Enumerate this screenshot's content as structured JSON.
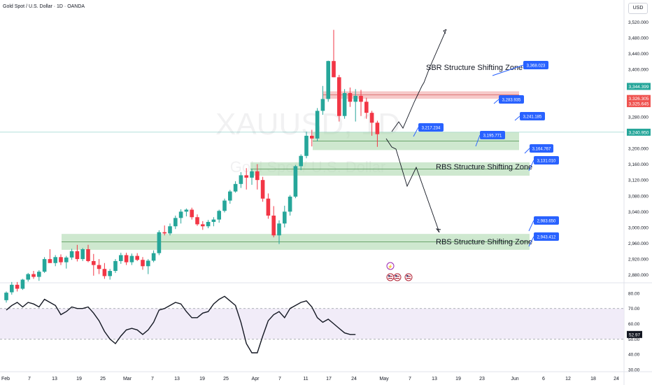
{
  "header": {
    "symbol_title": "Gold Spot / U.S. Dollar · 1D · OANDA",
    "currency": "USD",
    "watermark_symbol": "XAUUSD, 1D",
    "watermark_name": "Gold Spot / U.S. Dollar"
  },
  "chart_data": {
    "type": "candlestick",
    "price_axis": {
      "ylim": [
        2860,
        3540
      ],
      "ticks": [
        "3,520.000",
        "3,480.000",
        "3,440.000",
        "3,400.000",
        "3,360.000",
        "3,320.000",
        "3,280.000",
        "3,240.000",
        "3,200.000",
        "3,160.000",
        "3,120.000",
        "3,080.000",
        "3,040.000",
        "3,000.000",
        "2,960.000",
        "2,920.000",
        "2,880.000"
      ],
      "price_labels": [
        {
          "text": "3,344.399",
          "value": 3344.4,
          "color": "#26a69a"
        },
        {
          "text": "3,326.305",
          "value": 3326.3,
          "color": "#ef5350"
        },
        {
          "text": "3,325.645",
          "value": 3325.6,
          "color": "#ef5350"
        },
        {
          "text": "3,240.950",
          "value": 3240.95,
          "color": "#26a69a"
        }
      ]
    },
    "time_axis": {
      "labels": [
        "Feb",
        "7",
        "13",
        "19",
        "25",
        "Mar",
        "7",
        "13",
        "19",
        "25",
        "Apr",
        "7",
        "11",
        "17",
        "24",
        "May",
        "7",
        "13",
        "19",
        "23",
        "Jun",
        "6",
        "12",
        "18",
        "24"
      ]
    },
    "candles": [
      [
        2816,
        2838,
        2810,
        2835
      ],
      [
        2836,
        2862,
        2830,
        2855
      ],
      [
        2855,
        2862,
        2838,
        2845
      ],
      [
        2845,
        2870,
        2842,
        2868
      ],
      [
        2868,
        2885,
        2863,
        2882
      ],
      [
        2882,
        2890,
        2870,
        2875
      ],
      [
        2875,
        2892,
        2865,
        2888
      ],
      [
        2888,
        2925,
        2885,
        2920
      ],
      [
        2920,
        2945,
        2912,
        2910
      ],
      [
        2910,
        2930,
        2902,
        2925
      ],
      [
        2925,
        2932,
        2905,
        2912
      ],
      [
        2912,
        2928,
        2896,
        2924
      ],
      [
        2924,
        2946,
        2918,
        2940
      ],
      [
        2940,
        2956,
        2914,
        2920
      ],
      [
        2920,
        2948,
        2915,
        2945
      ],
      [
        2945,
        2956,
        2912,
        2915
      ],
      [
        2915,
        2933,
        2878,
        2905
      ],
      [
        2905,
        2920,
        2882,
        2895
      ],
      [
        2895,
        2910,
        2870,
        2877
      ],
      [
        2877,
        2895,
        2868,
        2890
      ],
      [
        2890,
        2920,
        2885,
        2915
      ],
      [
        2915,
        2936,
        2908,
        2930
      ],
      [
        2930,
        2936,
        2905,
        2912
      ],
      [
        2912,
        2934,
        2905,
        2928
      ],
      [
        2928,
        2935,
        2915,
        2918
      ],
      [
        2918,
        2925,
        2893,
        2902
      ],
      [
        2902,
        2920,
        2882,
        2916
      ],
      [
        2916,
        2942,
        2912,
        2935
      ],
      [
        2935,
        2993,
        2930,
        2988
      ],
      [
        2988,
        3005,
        2980,
        2985
      ],
      [
        2985,
        3010,
        2980,
        3003
      ],
      [
        3003,
        3030,
        2996,
        3024
      ],
      [
        3024,
        3046,
        3010,
        3040
      ],
      [
        3040,
        3048,
        3028,
        3045
      ],
      [
        3045,
        3050,
        3020,
        3026
      ],
      [
        3026,
        3033,
        3004,
        3008
      ],
      [
        3008,
        3016,
        2994,
        3003
      ],
      [
        3003,
        3019,
        2998,
        3014
      ],
      [
        3014,
        3026,
        3003,
        3020
      ],
      [
        3020,
        3045,
        3012,
        3042
      ],
      [
        3042,
        3073,
        3038,
        3068
      ],
      [
        3068,
        3095,
        3060,
        3091
      ],
      [
        3091,
        3117,
        3088,
        3110
      ],
      [
        3110,
        3140,
        3100,
        3132
      ],
      [
        3132,
        3150,
        3096,
        3126
      ],
      [
        3126,
        3148,
        3108,
        3142
      ],
      [
        3142,
        3160,
        3096,
        3120
      ],
      [
        3120,
        3128,
        3065,
        3073
      ],
      [
        3073,
        3086,
        3022,
        3030
      ],
      [
        3030,
        3054,
        2975,
        2980
      ],
      [
        2980,
        3018,
        2958,
        3010
      ],
      [
        3010,
        3055,
        3000,
        3040
      ],
      [
        3040,
        3082,
        3030,
        3078
      ],
      [
        3078,
        3158,
        3074,
        3155
      ],
      [
        3155,
        3185,
        3145,
        3181
      ],
      [
        3181,
        3242,
        3175,
        3232
      ],
      [
        3232,
        3247,
        3205,
        3225
      ],
      [
        3225,
        3302,
        3218,
        3295
      ],
      [
        3295,
        3358,
        3285,
        3325
      ],
      [
        3325,
        3422,
        3318,
        3421
      ],
      [
        3421,
        3500,
        3380,
        3380
      ],
      [
        3380,
        3386,
        3268,
        3282
      ],
      [
        3282,
        3350,
        3275,
        3340
      ],
      [
        3340,
        3354,
        3305,
        3318
      ],
      [
        3318,
        3350,
        3268,
        3333
      ],
      [
        3333,
        3348,
        3282,
        3318
      ],
      [
        3318,
        3328,
        3275,
        3290
      ],
      [
        3290,
        3295,
        3232,
        3265
      ],
      [
        3265,
        3270,
        3204,
        3236
      ]
    ],
    "zones": [
      {
        "kind": "sbr",
        "label": "SBR Structure Shifting Zone",
        "top": 3344.399,
        "bottom": 3325.645
      },
      {
        "kind": "demand",
        "label": "",
        "top": 3241.185,
        "bottom": 3195.771
      },
      {
        "kind": "rbs",
        "label": "RBS Structure Shifting Zone",
        "top": 3164.767,
        "bottom": 3131.01
      },
      {
        "kind": "rbs",
        "label": "RBS Structure Shifting Zone",
        "top": 2983.65,
        "bottom": 2943.412
      }
    ],
    "callouts": [
      {
        "text": "3,368.023",
        "value": 3368.023
      },
      {
        "text": "3,283.935",
        "value": 3283.935
      },
      {
        "text": "3,241.185",
        "value": 3241.185
      },
      {
        "text": "3,217.234",
        "value": 3217.234
      },
      {
        "text": "3,195.771",
        "value": 3195.771
      },
      {
        "text": "3,164.767",
        "value": 3164.767
      },
      {
        "text": "3,131.010",
        "value": 3131.01
      },
      {
        "text": "2,983.650",
        "value": 2983.65
      },
      {
        "text": "2,943.412",
        "value": 2943.412
      }
    ],
    "rsi": {
      "ylim": [
        30,
        85
      ],
      "ticks": [
        "80.00",
        "70.00",
        "60.00",
        "50.00",
        "40.00",
        "30.00"
      ],
      "band": [
        50,
        70
      ],
      "current_label": "52.97",
      "values": [
        69,
        72,
        74,
        71,
        74,
        73,
        71,
        76,
        74,
        72,
        66,
        68,
        71,
        70,
        70,
        71,
        67,
        62,
        55,
        50,
        47,
        52,
        56,
        57,
        56,
        53,
        56,
        61,
        69,
        70,
        72,
        74,
        73,
        68,
        64,
        64,
        67,
        68,
        73,
        76,
        78,
        75,
        72,
        61,
        47,
        41,
        41,
        52,
        62,
        66,
        68,
        64,
        70,
        72,
        74,
        75,
        71,
        64,
        61,
        63,
        60,
        57,
        54,
        53,
        53
      ]
    },
    "colors": {
      "up": "#26a69a",
      "down": "#f23645",
      "zone_green": "#a5d6a7",
      "zone_red": "#ef9a9a",
      "callout": "#2962ff",
      "rsi_line": "#131722",
      "rsi_band": "#ede7f6"
    }
  }
}
